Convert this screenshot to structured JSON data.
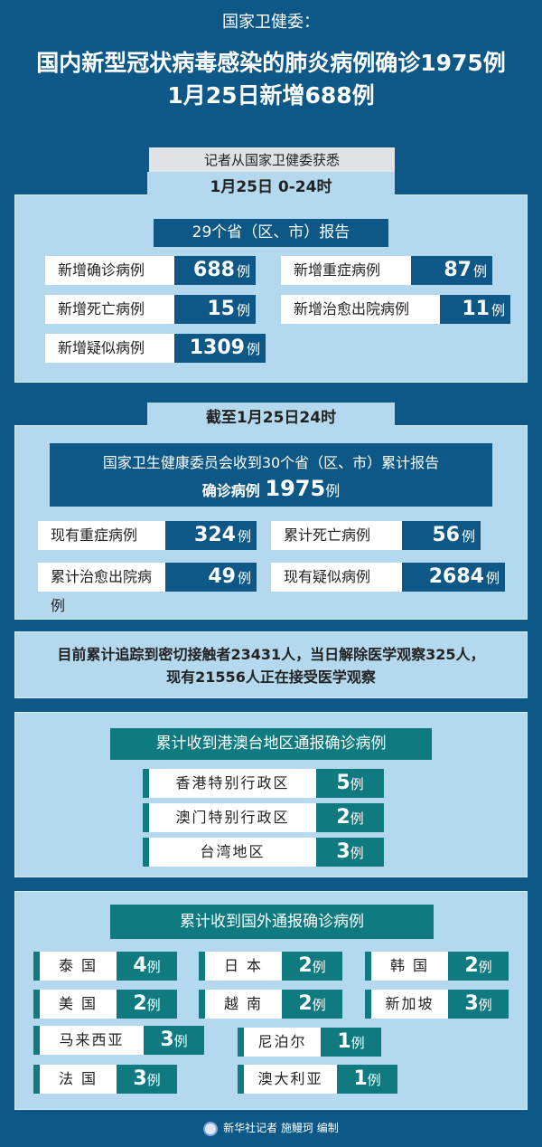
{
  "header": {
    "line0": "国家卫健委：",
    "line1": "国内新型冠状病毒感染的肺炎病例确诊1975例",
    "line2": "1月25日新增688例",
    "source": "记者从国家卫健委获悉"
  },
  "daily": {
    "tab": "1月25日 0-24时",
    "subtitle": "29个省（区、市）报告",
    "unit": "例",
    "items": [
      {
        "label": "新增确诊病例",
        "value": "688"
      },
      {
        "label": "新增重症病例",
        "value": "87"
      },
      {
        "label": "新增死亡病例",
        "value": "15"
      },
      {
        "label": "新增治愈出院病例",
        "value": "11"
      },
      {
        "label": "新增疑似病例",
        "value": "1309"
      }
    ]
  },
  "cumulative": {
    "tab": "截至1月25日24时",
    "subtitle": "国家卫生健康委员会收到30个省（区、市）累计报告",
    "confirmed_label": "确诊病例",
    "confirmed_value": "1975",
    "unit": "例",
    "items": [
      {
        "label": "现有重症病例",
        "value": "324"
      },
      {
        "label": "累计死亡病例",
        "value": "56"
      },
      {
        "label": "累计治愈出院病例",
        "value": "49"
      },
      {
        "label": "现有疑似病例",
        "value": "2684"
      }
    ]
  },
  "contacts": {
    "line1": "目前累计追踪到密切接触者23431人，当日解除医学观察325人，",
    "line2": "现有21556人正在接受医学观察"
  },
  "hmt": {
    "title": "累计收到港澳台地区通报确诊病例",
    "unit": "例",
    "items": [
      {
        "label": "香港特别行政区",
        "value": "5"
      },
      {
        "label": "澳门特别行政区",
        "value": "2"
      },
      {
        "label": "台湾地区",
        "value": "3"
      }
    ]
  },
  "foreign": {
    "title": "累计收到国外通报确诊病例",
    "unit": "例",
    "items": [
      {
        "label": "泰 国",
        "value": "4"
      },
      {
        "label": "日 本",
        "value": "2"
      },
      {
        "label": "韩 国",
        "value": "2"
      },
      {
        "label": "美 国",
        "value": "2"
      },
      {
        "label": "越 南",
        "value": "2"
      },
      {
        "label": "新加坡",
        "value": "3"
      },
      {
        "label": "马来西亚",
        "value": "3"
      },
      {
        "label": "尼泊尔",
        "value": "1"
      },
      {
        "label": "法 国",
        "value": "3"
      },
      {
        "label": "澳大利亚",
        "value": "1"
      }
    ]
  },
  "footer": {
    "credit": "新华社记者 施鳗珂 编制"
  },
  "colors": {
    "background": "#0d5886",
    "panel": "#b4d9ee",
    "teal": "#0f7a80"
  }
}
